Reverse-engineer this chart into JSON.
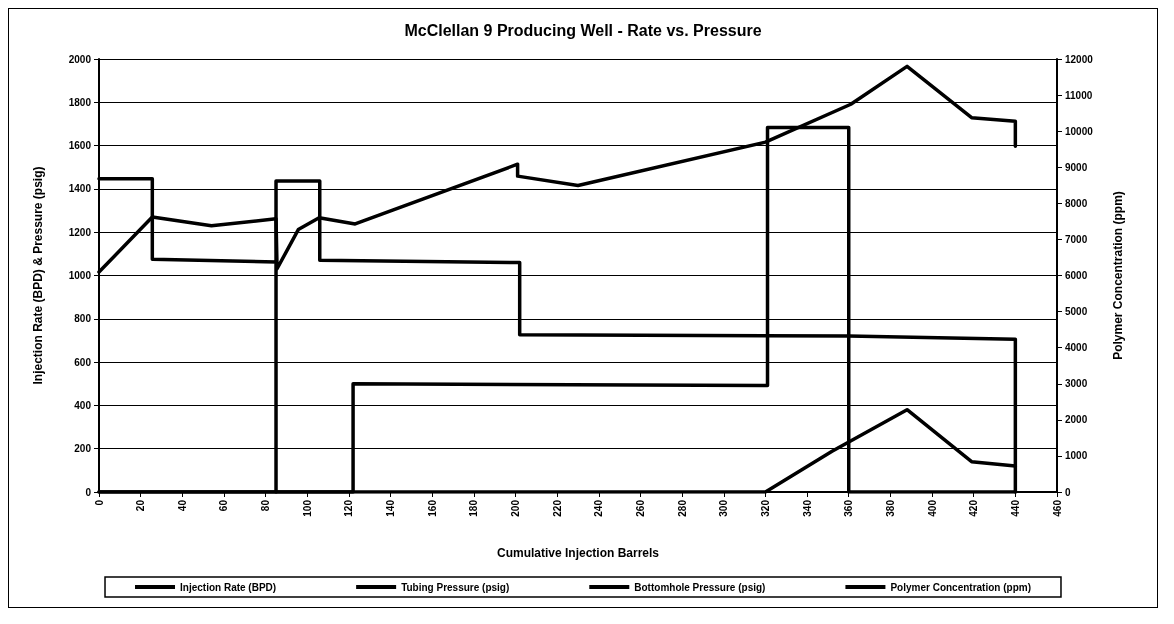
{
  "chart_data": {
    "type": "line",
    "title": "McClellan 9 Producing Well - Rate vs. Pressure",
    "xlabel": "Cumulative Injection Barrels",
    "ylabel": "Injection Rate (BPD) & Pressure (psig)",
    "y2label": "Polymer Concentration (ppm)",
    "xlim": [
      0,
      460
    ],
    "xticks": [
      0,
      20,
      40,
      60,
      80,
      100,
      120,
      140,
      160,
      180,
      200,
      220,
      240,
      260,
      280,
      300,
      320,
      340,
      360,
      380,
      400,
      420,
      440,
      460
    ],
    "ylim": [
      0,
      2000
    ],
    "yticks": [
      0,
      200,
      400,
      600,
      800,
      1000,
      1200,
      1400,
      1600,
      1800,
      2000
    ],
    "y2lim": [
      0,
      12000
    ],
    "y2ticks": [
      0,
      1000,
      2000,
      3000,
      4000,
      5000,
      6000,
      7000,
      8000,
      9000,
      10000,
      11000,
      12000
    ],
    "grid": "y",
    "legend": "bottom",
    "marker": "none",
    "line_style": "solid",
    "series": [
      {
        "name": "Injection Rate (BPD)",
        "color": "#000000",
        "x": [
          0,
          25.6,
          25.6,
          85,
          85,
          85,
          106,
          106,
          202,
          202,
          360,
          440,
          440
        ],
        "values": [
          1447,
          1447,
          1075,
          1062,
          0,
          1437,
          1437,
          1070,
          1060,
          726,
          720,
          705,
          0
        ]
      },
      {
        "name": "Tubing Pressure (psig)",
        "color": "#000000",
        "x": [
          0,
          25.6,
          54,
          85,
          85.5,
          95.7,
          105.7,
          123,
          201,
          201,
          230,
          320,
          361,
          388,
          419,
          440,
          440
        ],
        "values": [
          1016,
          1270,
          1230,
          1262,
          1031,
          1212,
          1267,
          1238,
          1514,
          1459,
          1416,
          1616,
          1791,
          1966,
          1729,
          1713,
          1597
        ]
      },
      {
        "name": "Bottomhole Pressure (psig)",
        "color": "#000000",
        "x": [
          0,
          320,
          352,
          388,
          419,
          440
        ],
        "values": [
          0,
          0,
          188,
          380,
          140,
          120
        ]
      },
      {
        "name": "Polymer Concentration (ppm)",
        "color": "#000000",
        "axis": "y2",
        "x": [
          0,
          122,
          122,
          321,
          321,
          360,
          360,
          440
        ],
        "values": [
          0,
          0,
          3000,
          2950,
          10100,
          10100,
          0,
          0
        ]
      }
    ]
  }
}
